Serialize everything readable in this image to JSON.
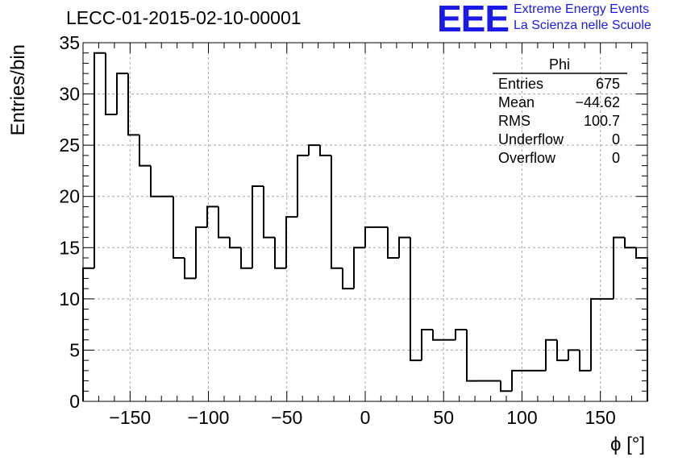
{
  "header": {
    "title": "LECC-01-2015-02-10-00001",
    "logo_text": "EEE",
    "brand_line1": "Extreme Energy Events",
    "brand_line2": "La Scienza nelle Scuole",
    "brand_color": "#1a1ae6"
  },
  "stats": {
    "name": "Phi",
    "rows": [
      {
        "label": "Entries",
        "value": "675"
      },
      {
        "label": "Mean",
        "value": "−44.62"
      },
      {
        "label": "RMS",
        "value": "100.7"
      },
      {
        "label": "Underflow",
        "value": "0"
      },
      {
        "label": "Overflow",
        "value": "0"
      }
    ]
  },
  "chart_data": {
    "type": "histogram",
    "xlabel": "ϕ [°]",
    "ylabel": "Entries/bin",
    "xlim": [
      -180,
      180
    ],
    "ylim": [
      0,
      35
    ],
    "bin_width": 7.2,
    "grid": true,
    "xticks": [
      -150,
      -100,
      -50,
      0,
      50,
      100,
      150
    ],
    "xtick_labels": [
      "−150",
      "−100",
      "−50",
      "0",
      "50",
      "100",
      "150"
    ],
    "yticks": [
      0,
      5,
      10,
      15,
      20,
      25,
      30,
      35
    ],
    "values": [
      13,
      34,
      28,
      32,
      26,
      23,
      20,
      20,
      14,
      12,
      17,
      19,
      16,
      15,
      13,
      21,
      16,
      13,
      18,
      24,
      25,
      24,
      13,
      11,
      15,
      17,
      17,
      14,
      16,
      4,
      7,
      6,
      6,
      7,
      2,
      2,
      2,
      1,
      3,
      3,
      3,
      6,
      4,
      5,
      3,
      10,
      10,
      16,
      15,
      14
    ],
    "line_color": "#000000",
    "grid_color": "#a8a8a8"
  }
}
